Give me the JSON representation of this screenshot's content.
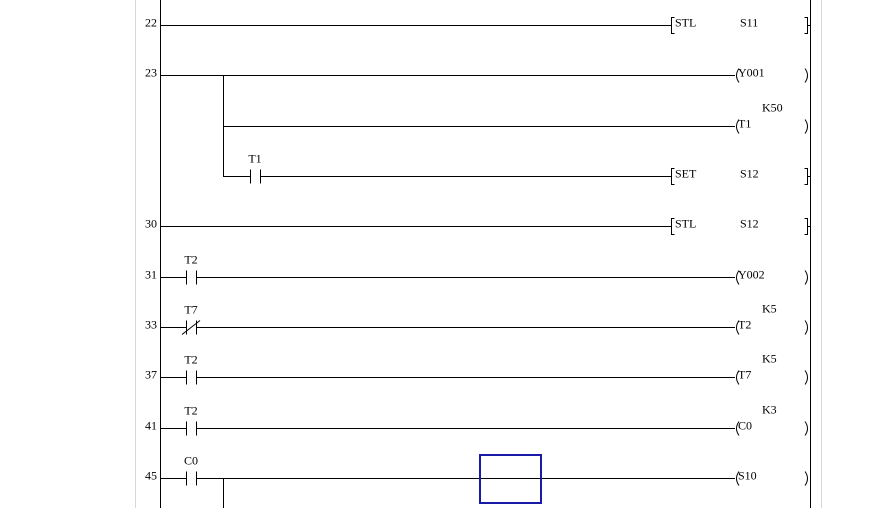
{
  "editor": {
    "cursor_color": "#1a1aa8",
    "line_color": "#000000",
    "rows": [
      {
        "step": "22",
        "contact": null,
        "output": {
          "kind": "instr",
          "name": "STL",
          "operand": "S11"
        }
      },
      {
        "step": "23",
        "contact": null,
        "output": {
          "kind": "coil",
          "name": "Y001",
          "const": ""
        }
      },
      {
        "step": "",
        "branch": true,
        "contact": null,
        "output": {
          "kind": "coil",
          "name": "T1",
          "const": "K50"
        }
      },
      {
        "step": "",
        "branch": true,
        "contact": {
          "label": "T1",
          "type": "no"
        },
        "output": {
          "kind": "instr",
          "name": "SET",
          "operand": "S12"
        }
      },
      {
        "step": "30",
        "contact": null,
        "output": {
          "kind": "instr",
          "name": "STL",
          "operand": "S12"
        }
      },
      {
        "step": "31",
        "contact": {
          "label": "T2",
          "type": "no"
        },
        "output": {
          "kind": "coil",
          "name": "Y002",
          "const": ""
        }
      },
      {
        "step": "33",
        "contact": {
          "label": "T7",
          "type": "nc"
        },
        "output": {
          "kind": "coil",
          "name": "T2",
          "const": "K5"
        }
      },
      {
        "step": "37",
        "contact": {
          "label": "T2",
          "type": "no"
        },
        "output": {
          "kind": "coil",
          "name": "T7",
          "const": "K5"
        }
      },
      {
        "step": "41",
        "contact": {
          "label": "T2",
          "type": "no"
        },
        "output": {
          "kind": "coil",
          "name": "C0",
          "const": "K3"
        }
      },
      {
        "step": "45",
        "contact": {
          "label": "C0",
          "type": "no"
        },
        "output": {
          "kind": "coil",
          "name": "S10",
          "const": ""
        }
      }
    ]
  }
}
